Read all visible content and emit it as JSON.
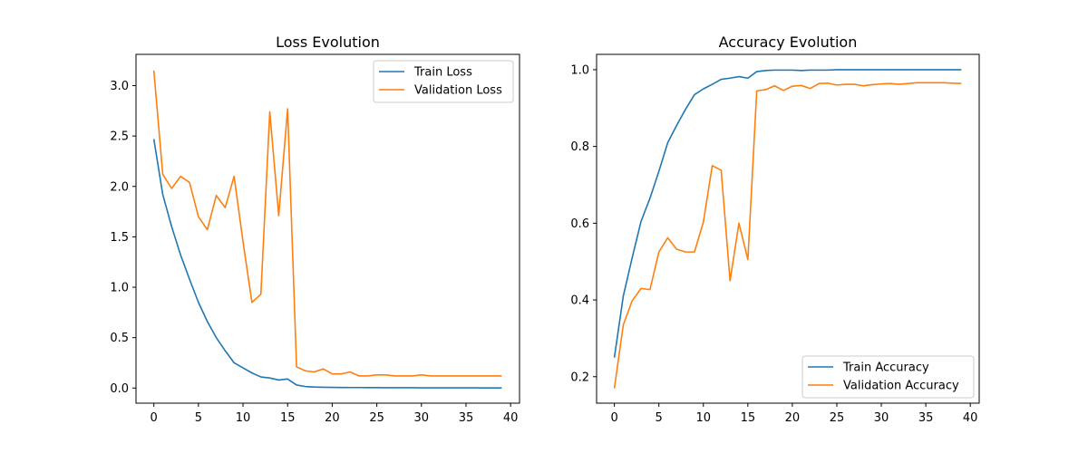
{
  "chart_data": [
    {
      "type": "line",
      "title": "Loss Evolution",
      "xlabel": "",
      "ylabel": "",
      "xlim": [
        -2,
        41
      ],
      "ylim": [
        -0.15,
        3.31
      ],
      "xticks": [
        0,
        5,
        10,
        15,
        20,
        25,
        30,
        35,
        40
      ],
      "yticks": [
        0.0,
        0.5,
        1.0,
        1.5,
        2.0,
        2.5,
        3.0
      ],
      "ytick_labels": [
        "0.0",
        "0.5",
        "1.0",
        "1.5",
        "2.0",
        "2.5",
        "3.0"
      ],
      "legend_position": "upper right",
      "grid": false,
      "x": [
        0,
        1,
        2,
        3,
        4,
        5,
        6,
        7,
        8,
        9,
        10,
        11,
        12,
        13,
        14,
        15,
        16,
        17,
        18,
        19,
        20,
        21,
        22,
        23,
        24,
        25,
        26,
        27,
        28,
        29,
        30,
        31,
        32,
        33,
        34,
        35,
        36,
        37,
        38,
        39
      ],
      "series": [
        {
          "name": "Train Loss",
          "color": "#1f77b4",
          "values": [
            2.47,
            1.92,
            1.6,
            1.32,
            1.08,
            0.85,
            0.66,
            0.5,
            0.37,
            0.25,
            0.2,
            0.15,
            0.11,
            0.1,
            0.08,
            0.09,
            0.03,
            0.015,
            0.01,
            0.008,
            0.007,
            0.006,
            0.005,
            0.005,
            0.004,
            0.004,
            0.003,
            0.003,
            0.003,
            0.003,
            0.002,
            0.002,
            0.002,
            0.002,
            0.002,
            0.002,
            0.002,
            0.001,
            0.001,
            0.001
          ]
        },
        {
          "name": "Validation Loss",
          "color": "#ff7f0e",
          "values": [
            3.15,
            2.12,
            1.98,
            2.1,
            2.04,
            1.7,
            1.57,
            1.91,
            1.79,
            2.1,
            1.45,
            0.85,
            0.93,
            2.74,
            1.71,
            2.77,
            0.21,
            0.17,
            0.16,
            0.19,
            0.14,
            0.14,
            0.16,
            0.12,
            0.12,
            0.13,
            0.13,
            0.12,
            0.12,
            0.12,
            0.13,
            0.12,
            0.12,
            0.12,
            0.12,
            0.12,
            0.12,
            0.12,
            0.12,
            0.12
          ]
        }
      ]
    },
    {
      "type": "line",
      "title": "Accuracy Evolution",
      "xlabel": "",
      "ylabel": "",
      "xlim": [
        -2,
        41
      ],
      "ylim": [
        0.131,
        1.04
      ],
      "xticks": [
        0,
        5,
        10,
        15,
        20,
        25,
        30,
        35,
        40
      ],
      "yticks": [
        0.2,
        0.4,
        0.6,
        0.8,
        1.0
      ],
      "ytick_labels": [
        "0.2",
        "0.4",
        "0.6",
        "0.8",
        "1.0"
      ],
      "legend_position": "lower right",
      "grid": false,
      "x": [
        0,
        1,
        2,
        3,
        4,
        5,
        6,
        7,
        8,
        9,
        10,
        11,
        12,
        13,
        14,
        15,
        16,
        17,
        18,
        19,
        20,
        21,
        22,
        23,
        24,
        25,
        26,
        27,
        28,
        29,
        30,
        31,
        32,
        33,
        34,
        35,
        36,
        37,
        38,
        39
      ],
      "series": [
        {
          "name": "Train Accuracy",
          "color": "#1f77b4",
          "values": [
            0.25,
            0.41,
            0.51,
            0.605,
            0.665,
            0.735,
            0.81,
            0.855,
            0.897,
            0.935,
            0.95,
            0.962,
            0.975,
            0.978,
            0.982,
            0.978,
            0.995,
            0.998,
            0.999,
            0.999,
            0.999,
            0.998,
            0.999,
            0.999,
            0.999,
            1.0,
            1.0,
            1.0,
            1.0,
            1.0,
            1.0,
            1.0,
            1.0,
            1.0,
            1.0,
            1.0,
            1.0,
            1.0,
            1.0,
            1.0
          ]
        },
        {
          "name": "Validation Accuracy",
          "color": "#ff7f0e",
          "values": [
            0.17,
            0.335,
            0.398,
            0.43,
            0.427,
            0.525,
            0.562,
            0.532,
            0.525,
            0.525,
            0.603,
            0.75,
            0.738,
            0.45,
            0.6,
            0.505,
            0.945,
            0.948,
            0.958,
            0.946,
            0.957,
            0.959,
            0.951,
            0.964,
            0.965,
            0.96,
            0.962,
            0.962,
            0.958,
            0.961,
            0.963,
            0.964,
            0.962,
            0.964,
            0.966,
            0.966,
            0.966,
            0.966,
            0.965,
            0.964
          ]
        }
      ]
    }
  ]
}
